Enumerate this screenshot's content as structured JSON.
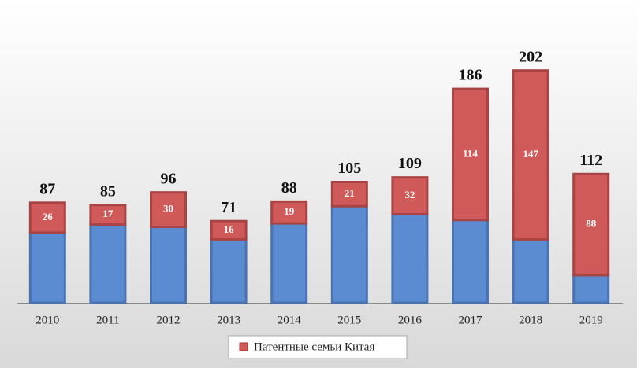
{
  "chart_data": {
    "type": "stacked_bar",
    "categories": [
      "2010",
      "2011",
      "2012",
      "2013",
      "2014",
      "2015",
      "2016",
      "2017",
      "2018",
      "2019"
    ],
    "series": [
      {
        "color": "#5b8bd0",
        "values": [
          61,
          68,
          66,
          55,
          69,
          84,
          77,
          72,
          55,
          24
        ]
      },
      {
        "name": "Патентные семьи Китая",
        "color": "#d05a5a",
        "values": [
          26,
          17,
          30,
          16,
          19,
          21,
          32,
          114,
          147,
          88
        ]
      }
    ],
    "totals": [
      87,
      85,
      96,
      71,
      88,
      105,
      109,
      186,
      202,
      112
    ],
    "ylim": [
      0,
      210
    ]
  }
}
